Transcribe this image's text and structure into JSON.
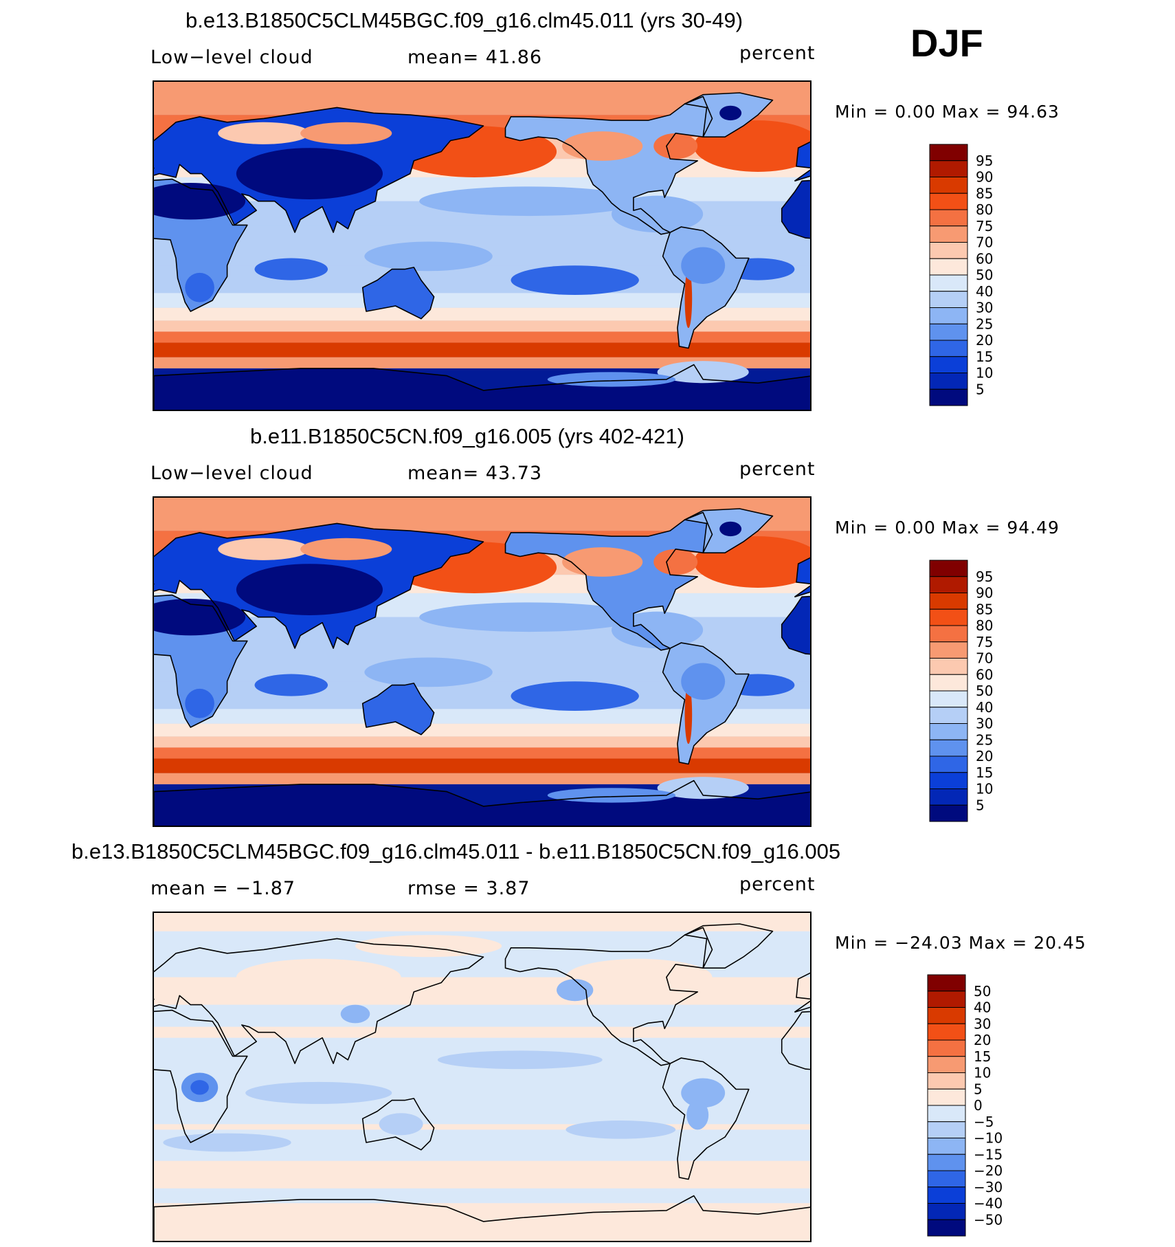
{
  "season": "DJF",
  "colors": {
    "pos": [
      "#800000",
      "#b01a00",
      "#d93a00",
      "#f25016",
      "#f47142",
      "#f79a72",
      "#fcc9b0",
      "#fde8db"
    ],
    "neg": [
      "#ffffff",
      "#d9e8f9",
      "#b5cff6",
      "#8db5f4",
      "#5f92ee",
      "#2f66e6",
      "#0b3fd8",
      "#0327b6",
      "#021a96",
      "#000a7e"
    ]
  },
  "panels": [
    {
      "title": "b.e13.B1850C5CLM45BGC.f09_g16.clm45.011 (yrs 30-49)",
      "left_label": "Low−level cloud",
      "center_label": "mean=   41.86",
      "units": "percent",
      "minmax": "Min  =     0.00  Max  =    94.63"
    },
    {
      "title": "b.e11.B1850C5CN.f09_g16.005 (yrs 402-421)",
      "left_label": "Low−level cloud",
      "center_label": "mean=   43.73",
      "units": "percent",
      "minmax": "Min  =     0.00  Max  =    94.49"
    },
    {
      "title": "b.e13.B1850C5CLM45BGC.f09_g16.clm45.011 - b.e11.B1850C5CN.f09_g16.005",
      "left_label": "mean  =   −1.87",
      "center_label": "rmse  =     3.87",
      "units": "percent",
      "minmax": "Min  = −24.03  Max  =    20.45"
    }
  ],
  "chart_data": [
    {
      "type": "heatmap",
      "title": "b.e13.B1850C5CLM45BGC.f09_g16.clm45.011 (yrs 30-49)",
      "variable": "Low−level cloud",
      "units": "percent",
      "mean": 41.86,
      "min": 0.0,
      "max": 94.63,
      "colorbar_levels": [
        "95",
        "90",
        "85",
        "80",
        "75",
        "70",
        "60",
        "50",
        "40",
        "30",
        "25",
        "20",
        "15",
        "10",
        "5"
      ]
    },
    {
      "type": "heatmap",
      "title": "b.e11.B1850C5CN.f09_g16.005 (yrs 402-421)",
      "variable": "Low−level cloud",
      "units": "percent",
      "mean": 43.73,
      "min": 0.0,
      "max": 94.49,
      "colorbar_levels": [
        "95",
        "90",
        "85",
        "80",
        "75",
        "70",
        "60",
        "50",
        "40",
        "30",
        "25",
        "20",
        "15",
        "10",
        "5"
      ]
    },
    {
      "type": "heatmap",
      "title": "b.e13.B1850C5CLM45BGC.f09_g16.clm45.011 - b.e11.B1850C5CN.f09_g16.005",
      "units": "percent",
      "mean": -1.87,
      "rmse": 3.87,
      "min": -24.03,
      "max": 20.45,
      "colorbar_levels": [
        "50",
        "40",
        "30",
        "20",
        "15",
        "10",
        "5",
        "0",
        "−5",
        "−10",
        "−15",
        "−20",
        "−30",
        "−40",
        "−50"
      ]
    }
  ]
}
